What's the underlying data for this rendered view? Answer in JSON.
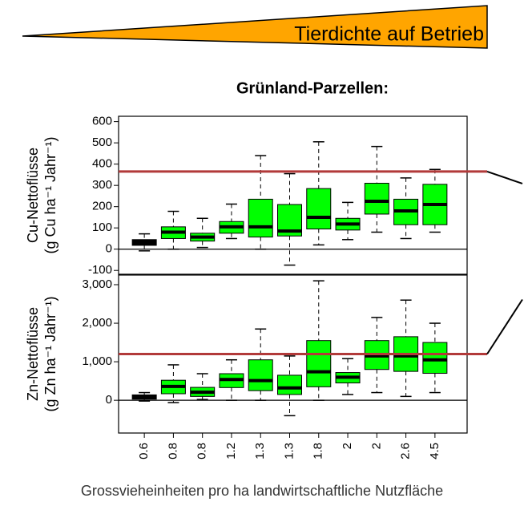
{
  "banner": "Tierdichte auf Betrieb",
  "chart_data": [
    {
      "type": "box",
      "title": "Grünland-Parzellen:",
      "ylabel": [
        "Cu-Nettoflüsse",
        "(g Cu ha⁻¹ Jahr⁻¹)"
      ],
      "ylim": [
        -118,
        625
      ],
      "yticks": [
        -100,
        0,
        100,
        200,
        300,
        400,
        500,
        600
      ],
      "reference_line": 365,
      "reference_color": "#b23a3a",
      "colors": [
        "#000000",
        "#00ff00",
        "#00ff00",
        "#00ff00",
        "#00ff00",
        "#00ff00",
        "#00ff00",
        "#00ff00",
        "#00ff00",
        "#00ff00",
        "#00ff00"
      ],
      "min": [
        -8,
        0,
        8,
        50,
        0,
        -75,
        20,
        45,
        80,
        50,
        80
      ],
      "q1": [
        18,
        50,
        38,
        75,
        57,
        62,
        95,
        90,
        165,
        115,
        115
      ],
      "median": [
        30,
        80,
        57,
        105,
        105,
        85,
        150,
        118,
        225,
        180,
        210
      ],
      "q3": [
        45,
        105,
        75,
        130,
        235,
        210,
        285,
        145,
        310,
        235,
        305
      ],
      "max": [
        72,
        178,
        145,
        212,
        440,
        355,
        505,
        220,
        483,
        335,
        375
      ]
    },
    {
      "type": "box",
      "ylabel": [
        "Zn-Nettoflüsse",
        "(g Zn ha⁻¹ Jahr⁻¹)"
      ],
      "xlabel": "Grossvieheinheiten pro ha landwirtschaftliche Nutzfläche",
      "categories": [
        "0.6",
        "0.8",
        "0.8",
        "1.2",
        "1.3",
        "1.3",
        "1.8",
        "2",
        "2",
        "2.6",
        "4.5"
      ],
      "ylim": [
        -850,
        3250
      ],
      "yticks": [
        0,
        {
          "value": 1000,
          "label": "1,000"
        },
        {
          "value": 2000,
          "label": "2,000"
        },
        {
          "value": 3000,
          "label": "3,000"
        }
      ],
      "reference_line": 1200,
      "reference_color": "#b23a3a",
      "colors": [
        "#000000",
        "#00ff00",
        "#00ff00",
        "#00ff00",
        "#00ff00",
        "#00ff00",
        "#00ff00",
        "#00ff00",
        "#00ff00",
        "#00ff00",
        "#00ff00"
      ],
      "min": [
        -20,
        -60,
        20,
        0,
        0,
        -400,
        0,
        150,
        200,
        100,
        200
      ],
      "q1": [
        30,
        170,
        100,
        330,
        250,
        150,
        350,
        450,
        800,
        750,
        700
      ],
      "median": [
        80,
        360,
        210,
        540,
        510,
        320,
        740,
        600,
        1150,
        1150,
        1050
      ],
      "q3": [
        140,
        520,
        335,
        690,
        1050,
        650,
        1550,
        720,
        1550,
        1650,
        1500
      ],
      "max": [
        200,
        920,
        690,
        1050,
        1850,
        1150,
        3100,
        1080,
        2150,
        2600,
        2000
      ]
    }
  ]
}
